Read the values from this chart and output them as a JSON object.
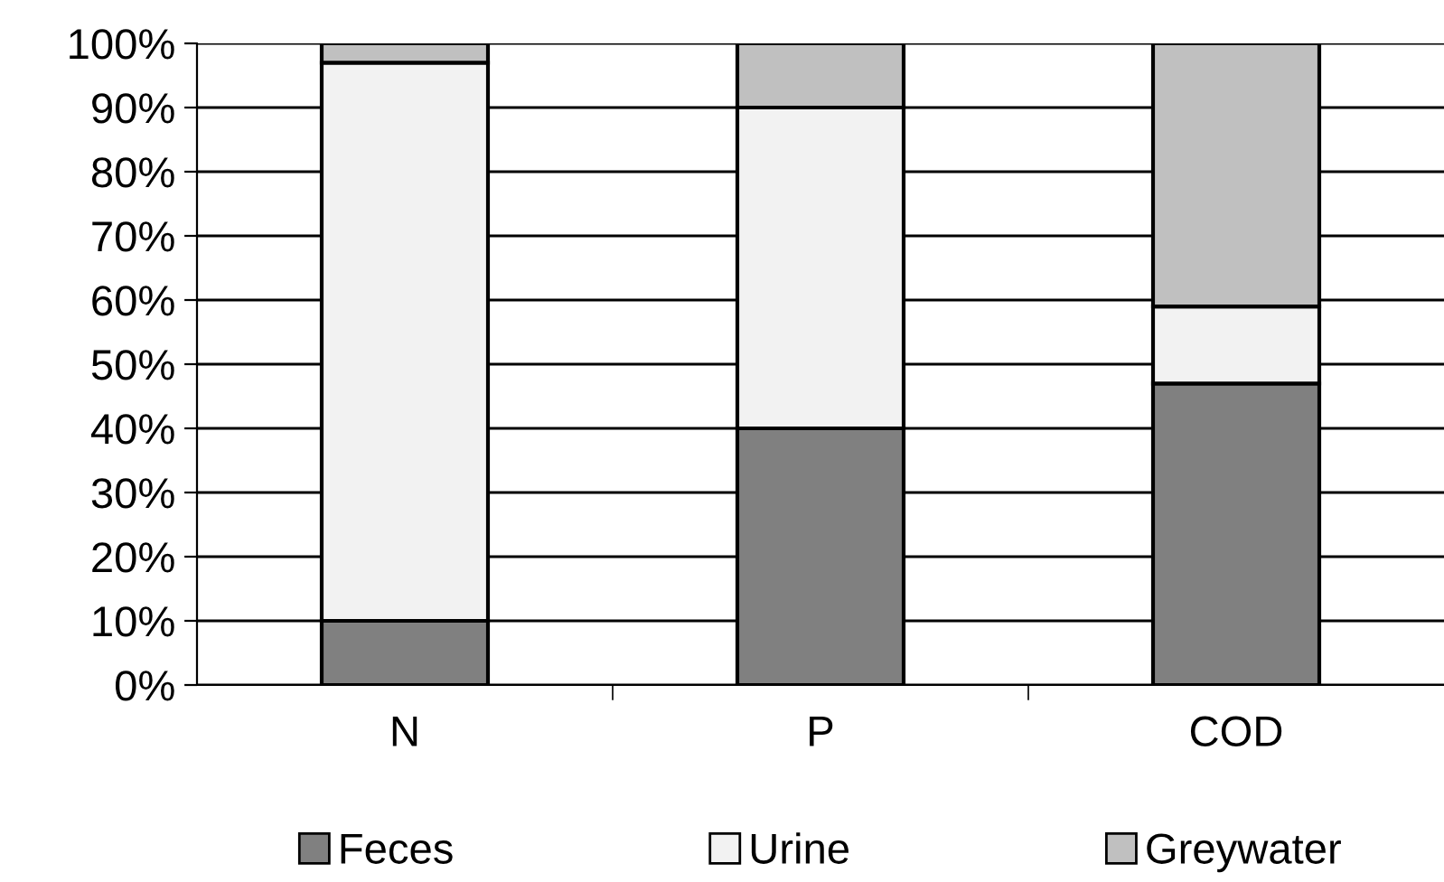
{
  "chart_data": {
    "type": "bar",
    "stacked": true,
    "categories": [
      "N",
      "P",
      "COD"
    ],
    "series": [
      {
        "name": "Feces",
        "color": "#808080",
        "values": [
          10,
          40,
          47
        ]
      },
      {
        "name": "Urine",
        "color": "#f2f2f2",
        "values": [
          87,
          50,
          12
        ]
      },
      {
        "name": "Greywater",
        "color": "#c0c0c0",
        "values": [
          3,
          10,
          41
        ]
      }
    ],
    "ylim": [
      0,
      100
    ],
    "yticks": [
      {
        "value": 0,
        "label": "0%"
      },
      {
        "value": 10,
        "label": "10%"
      },
      {
        "value": 20,
        "label": "20%"
      },
      {
        "value": 30,
        "label": "30%"
      },
      {
        "value": 40,
        "label": "40%"
      },
      {
        "value": 50,
        "label": "50%"
      },
      {
        "value": 60,
        "label": "60%"
      },
      {
        "value": 70,
        "label": "70%"
      },
      {
        "value": 80,
        "label": "80%"
      },
      {
        "value": 90,
        "label": "90%"
      },
      {
        "value": 100,
        "label": "100%"
      }
    ],
    "grid": "y",
    "legend": "bottom"
  }
}
